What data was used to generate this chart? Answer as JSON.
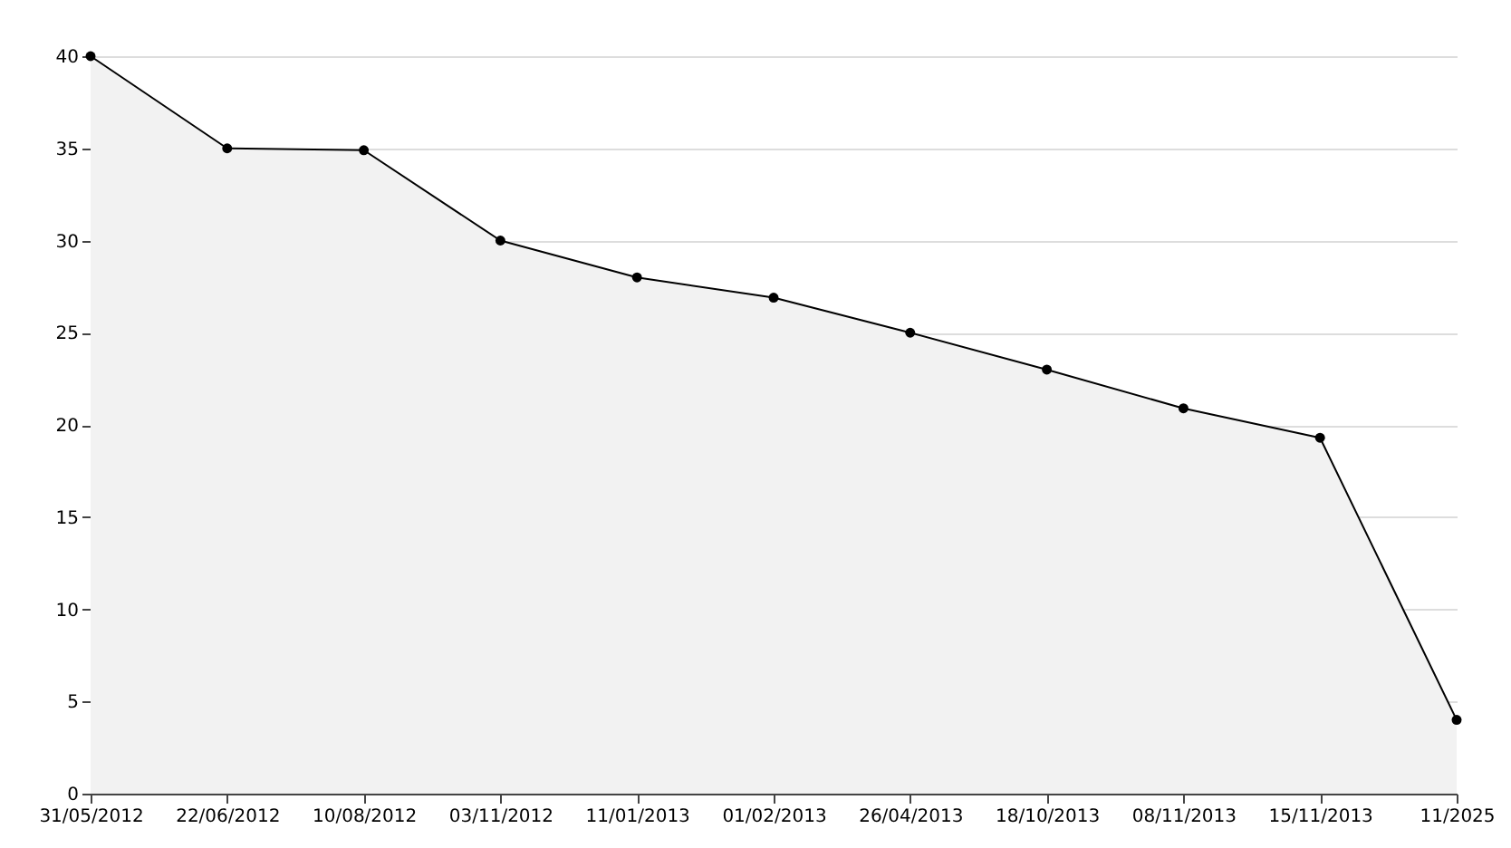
{
  "chart_data": {
    "type": "area",
    "categories": [
      "31/05/2012",
      "22/06/2012",
      "10/08/2012",
      "03/11/2012",
      "11/01/2013",
      "01/02/2013",
      "26/04/2013",
      "18/10/2013",
      "08/11/2013",
      "15/11/2013",
      "11/2025"
    ],
    "series": [
      {
        "color": "#f2f2f2",
        "values": [
          40,
          35,
          34.9,
          30,
          28,
          26.9,
          25,
          23,
          20.9,
          19.3,
          4
        ]
      }
    ],
    "ylim": [
      0,
      40
    ],
    "yticks": [
      0,
      5,
      10,
      15,
      20,
      25,
      30,
      35,
      40
    ],
    "grid": "y",
    "marker": "circle",
    "line_style": "solid"
  }
}
